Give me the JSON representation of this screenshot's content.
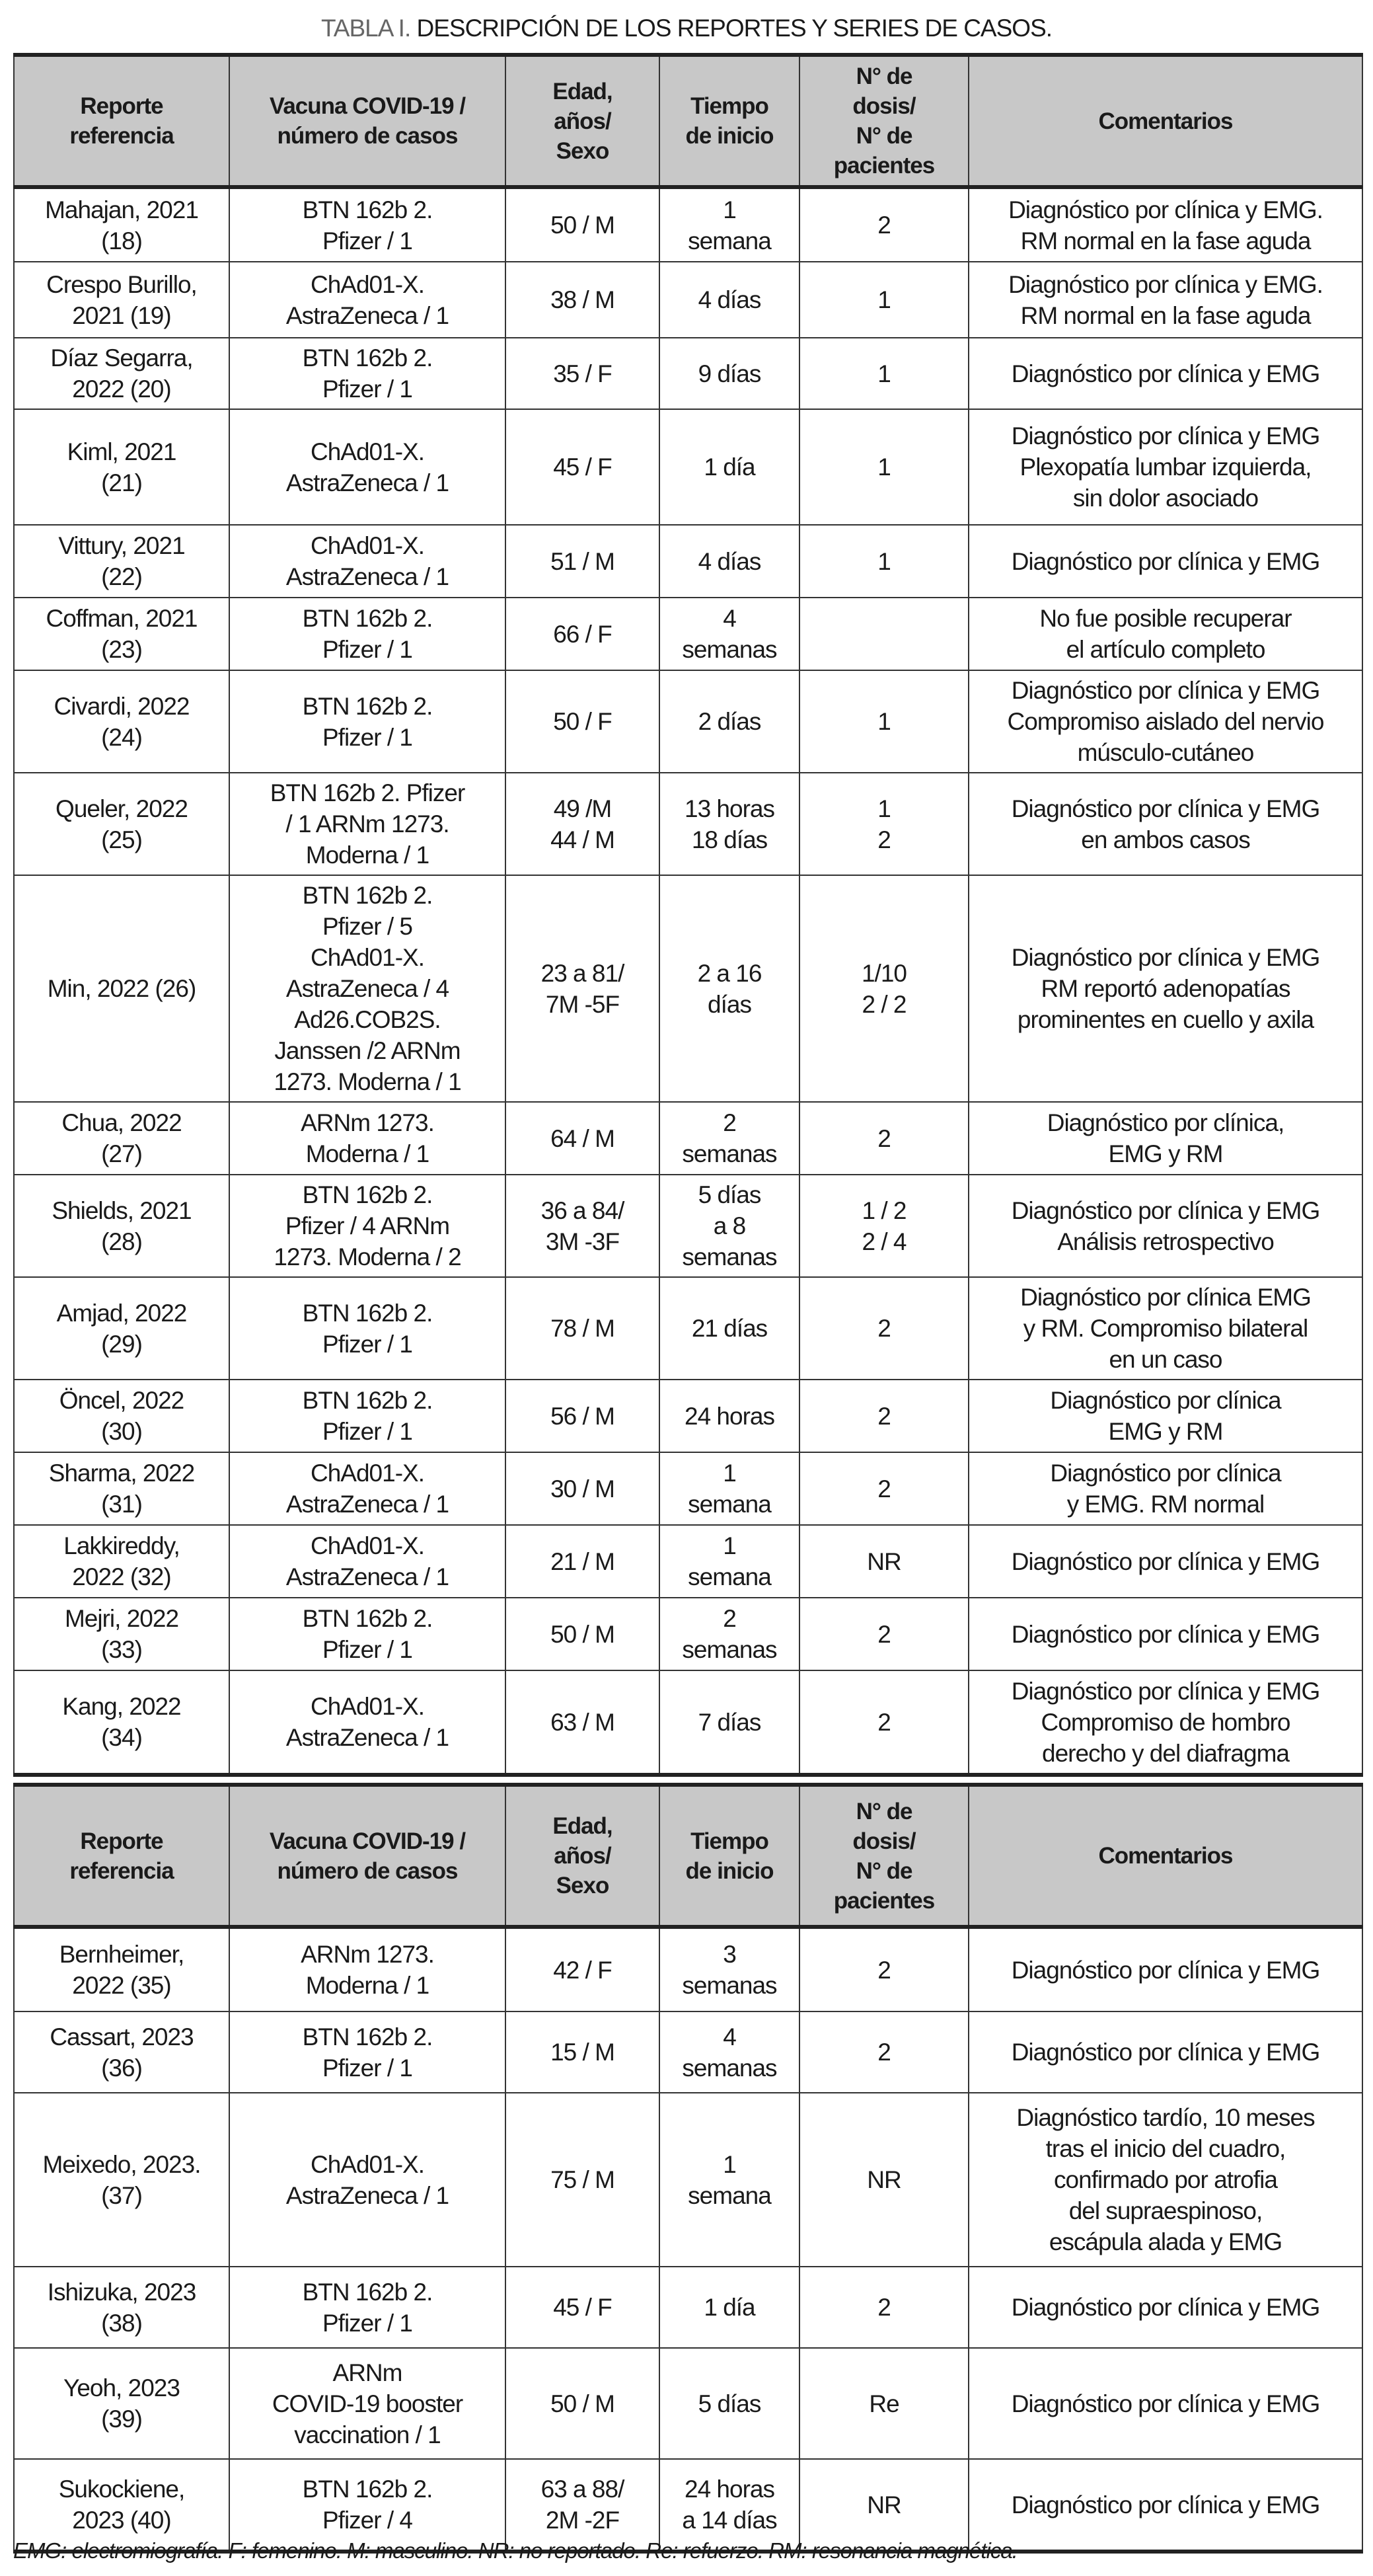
{
  "title": {
    "label": "TABLA I.",
    "text": " DESCRIPCIÓN DE LOS REPORTES Y SERIES DE CASOS."
  },
  "headers": [
    "Reporte\nreferencia",
    "Vacuna COVID-19 /\nnúmero de casos",
    "Edad,\naños/\nSexo",
    "Tiempo\nde inicio",
    "N° de\ndosis/\nN° de\npacientes",
    "Comentarios"
  ],
  "table1": [
    [
      "Mahajan, 2021\n(18)",
      "BTN 162b 2.\nPfizer / 1",
      "50 / M",
      "1\nsemana",
      "2",
      "Diagnóstico por clínica y EMG.\nRM normal en la fase aguda"
    ],
    [
      "Crespo Burillo,\n2021 (19)",
      "ChAd01-X.\nAstraZeneca / 1",
      "38 / M",
      "4 días",
      "1",
      "Diagnóstico por clínica y EMG.\nRM normal en la fase aguda"
    ],
    [
      "Díaz Segarra,\n2022 (20)",
      "BTN 162b 2.\nPfizer / 1",
      "35 / F",
      "9 días",
      "1",
      "Diagnóstico por clínica y EMG"
    ],
    [
      "Kiml, 2021\n(21)",
      "ChAd01-X.\nAstraZeneca / 1",
      "45 / F",
      "1 día",
      "1",
      "Diagnóstico por clínica y EMG\nPlexopatía lumbar izquierda,\nsin dolor asociado"
    ],
    [
      "Vittury, 2021\n(22)",
      "ChAd01-X.\nAstraZeneca / 1",
      "51 / M",
      "4 días",
      "1",
      "Diagnóstico por clínica y EMG"
    ],
    [
      "Coffman, 2021\n(23)",
      "BTN 162b 2.\nPfizer / 1",
      "66 / F",
      "4\nsemanas",
      "",
      "No fue posible recuperar\nel artículo completo"
    ],
    [
      "Civardi, 2022\n(24)",
      "BTN 162b 2.\nPfizer / 1",
      "50 / F",
      "2 días",
      "1",
      "Diagnóstico por clínica y EMG\nCompromiso aislado del nervio\nmúsculo-cutáneo"
    ],
    [
      "Queler, 2022\n(25)",
      "BTN 162b 2. Pfizer\n/ 1 ARNm 1273.\nModerna / 1",
      "49 /M\n44 / M",
      "13 horas\n18 días",
      "1\n2",
      "Diagnóstico por clínica y EMG\nen ambos casos"
    ],
    [
      "Min, 2022 (26)",
      "BTN 162b 2.\nPfizer / 5\nChAd01-X.\nAstraZeneca / 4\nAd26.COB2S.\nJanssen /2 ARNm\n1273. Moderna / 1",
      "23 a 81/\n7M -5F",
      "2 a 16\ndías",
      "1/10\n2 / 2",
      "Diagnóstico por clínica y EMG\nRM reportó adenopatías\nprominentes en cuello y axila"
    ],
    [
      "Chua, 2022\n(27)",
      "ARNm 1273.\nModerna / 1",
      "64 / M",
      "2\nsemanas",
      "2",
      "Diagnóstico por clínica,\nEMG y RM"
    ],
    [
      "Shields, 2021\n(28)",
      "BTN 162b 2.\nPfizer / 4 ARNm\n1273. Moderna / 2",
      "36 a 84/\n3M -3F",
      "5 días\na 8\nsemanas",
      "1 / 2\n2 / 4",
      "Diagnóstico por clínica y EMG\nAnálisis retrospectivo"
    ],
    [
      "Amjad, 2022\n(29)",
      "BTN 162b 2.\nPfizer / 1",
      "78 / M",
      "21 días",
      "2",
      "Diagnóstico por clínica EMG\ny RM. Compromiso bilateral\nen un caso"
    ],
    [
      "Öncel, 2022\n(30)",
      "BTN 162b 2.\nPfizer / 1",
      "56 / M",
      "24 horas",
      "2",
      "Diagnóstico por clínica\nEMG y RM"
    ],
    [
      "Sharma, 2022\n(31)",
      "ChAd01-X.\nAstraZeneca / 1",
      "30 / M",
      "1\nsemana",
      "2",
      "Diagnóstico por clínica\ny EMG. RM normal"
    ],
    [
      "Lakkireddy,\n2022 (32)",
      "ChAd01-X.\nAstraZeneca / 1",
      "21 / M",
      "1\nsemana",
      "NR",
      "Diagnóstico por clínica y EMG"
    ],
    [
      "Mejri, 2022\n(33)",
      "BTN 162b 2.\nPfizer / 1",
      "50 / M",
      "2\nsemanas",
      "2",
      "Diagnóstico por clínica y EMG"
    ],
    [
      "Kang, 2022\n(34)",
      "ChAd01-X.\nAstraZeneca / 1",
      "63 / M",
      "7 días",
      "2",
      "Diagnóstico por clínica y EMG\nCompromiso de hombro\nderecho y del diafragma"
    ]
  ],
  "table2": [
    [
      "Bernheimer,\n2022 (35)",
      "ARNm 1273.\nModerna / 1",
      "42 / F",
      "3\nsemanas",
      "2",
      "Diagnóstico por clínica y EMG"
    ],
    [
      "Cassart, 2023\n(36)",
      "BTN 162b 2.\nPfizer / 1",
      "15 / M",
      "4\nsemanas",
      "2",
      "Diagnóstico por clínica y EMG"
    ],
    [
      "Meixedo, 2023.\n(37)",
      "ChAd01-X.\nAstraZeneca / 1",
      "75 / M",
      "1\nsemana",
      "NR",
      "Diagnóstico tardío, 10 meses\ntras el inicio del cuadro,\nconfirmado por atrofia\ndel supraespinoso,\nescápula alada y EMG"
    ],
    [
      "Ishizuka, 2023\n(38)",
      "BTN 162b 2.\nPfizer / 1",
      "45 / F",
      "1 día",
      "2",
      "Diagnóstico por clínica y EMG"
    ],
    [
      "Yeoh, 2023\n(39)",
      "ARNm\nCOVID-19 booster\nvaccination / 1",
      "50 / M",
      "5 días",
      "Re",
      "Diagnóstico por clínica y EMG"
    ],
    [
      "Sukockiene,\n2023 (40)",
      "BTN 162b 2.\nPfizer / 4",
      "63 a 88/\n2M -2F",
      "24 horas\na 14 días",
      "NR",
      "Diagnóstico por clínica y EMG"
    ]
  ],
  "footnote": "EMG: electromiografía. F: femenino. M: masculino. NR: no reportado. Re: refuerzo. RM: resonancia magnética."
}
